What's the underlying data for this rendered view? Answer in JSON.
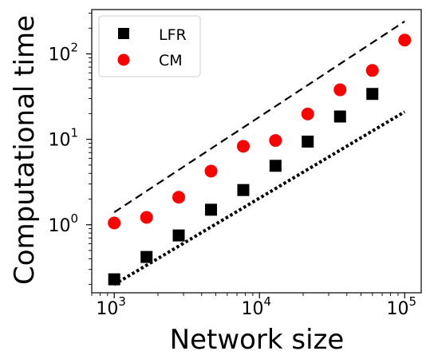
{
  "chart_data": {
    "type": "scatter",
    "xlabel": "Network size",
    "ylabel": "Computational time",
    "xscale": "log",
    "yscale": "log",
    "xlim": [
      700,
      130000
    ],
    "ylim": [
      0.16,
      330
    ],
    "grid": false,
    "legend_position": "top-left",
    "x_ticks": [
      {
        "base": "10",
        "exp": "3",
        "value": 1000
      },
      {
        "base": "10",
        "exp": "4",
        "value": 10000
      },
      {
        "base": "10",
        "exp": "5",
        "value": 100000
      }
    ],
    "y_ticks": [
      {
        "base": "10",
        "exp": "0",
        "value": 1
      },
      {
        "base": "10",
        "exp": "1",
        "value": 10
      },
      {
        "base": "10",
        "exp": "2",
        "value": 100
      }
    ],
    "series": [
      {
        "name": "LFR",
        "marker": "square",
        "color": "#000000",
        "x": [
          1000,
          1670,
          2780,
          4640,
          7740,
          12900,
          21500,
          35900,
          59900,
          100000
        ],
        "y": [
          0.23,
          0.42,
          0.75,
          1.5,
          2.55,
          4.9,
          9.4,
          18.5,
          34.0,
          null
        ]
      },
      {
        "name": "CM",
        "marker": "circle",
        "color": "#ff0000",
        "x": [
          1000,
          1670,
          2780,
          4640,
          7740,
          12900,
          21500,
          35900,
          59900,
          100000
        ],
        "y": [
          1.05,
          1.22,
          2.1,
          4.25,
          8.3,
          9.7,
          19.8,
          38.0,
          64.0,
          145.0
        ]
      }
    ],
    "reference_lines": [
      {
        "style": "dashed",
        "color": "#000000",
        "x": [
          1000,
          100000
        ],
        "y": [
          1.4,
          240
        ]
      },
      {
        "style": "dotted",
        "color": "#000000",
        "x": [
          1000,
          100000
        ],
        "y": [
          0.2,
          21
        ]
      }
    ]
  }
}
